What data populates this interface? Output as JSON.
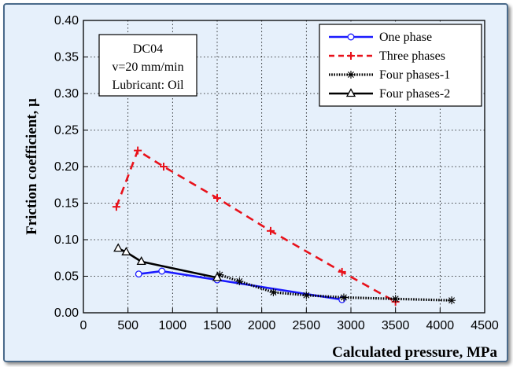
{
  "chart_data": {
    "type": "line",
    "xlabel": "Calculated pressure, MPa",
    "ylabel": "Friction coefficient, μ",
    "xlim": [
      0,
      4500
    ],
    "ylim": [
      0,
      0.4
    ],
    "xticks": [
      "0",
      "500",
      "1000",
      "1500",
      "2000",
      "2500",
      "3000",
      "3500",
      "4000",
      "4500"
    ],
    "yticks": [
      "0.00",
      "0.05",
      "0.10",
      "0.15",
      "0.20",
      "0.25",
      "0.30",
      "0.35",
      "0.40"
    ],
    "grid": "dotted",
    "legend_position": "top-right",
    "annotation": [
      "DC04",
      "v=20 mm/min",
      "Lubricant: Oil"
    ],
    "series": [
      {
        "name": "One phase",
        "color": "#1a1aff",
        "marker": "circle",
        "line": "solid",
        "x": [
          620,
          880,
          1500,
          2900
        ],
        "y": [
          0.053,
          0.057,
          0.045,
          0.018
        ]
      },
      {
        "name": "Three phases",
        "color": "#e8121b",
        "marker": "plus",
        "line": "dashed",
        "x": [
          370,
          610,
          900,
          1500,
          2100,
          2900,
          3500
        ],
        "y": [
          0.145,
          0.222,
          0.2,
          0.157,
          0.112,
          0.056,
          0.015
        ]
      },
      {
        "name": "Four phases-1",
        "color": "#000000",
        "marker": "asterisk",
        "line": "dotted",
        "x": [
          1530,
          1750,
          2130,
          2500,
          2920,
          3500,
          4130
        ],
        "y": [
          0.052,
          0.043,
          0.028,
          0.024,
          0.021,
          0.019,
          0.017
        ]
      },
      {
        "name": "Four phases-2",
        "color": "#000000",
        "marker": "triangle",
        "line": "solid",
        "x": [
          390,
          480,
          650,
          1500
        ],
        "y": [
          0.088,
          0.083,
          0.07,
          0.048
        ]
      }
    ]
  }
}
